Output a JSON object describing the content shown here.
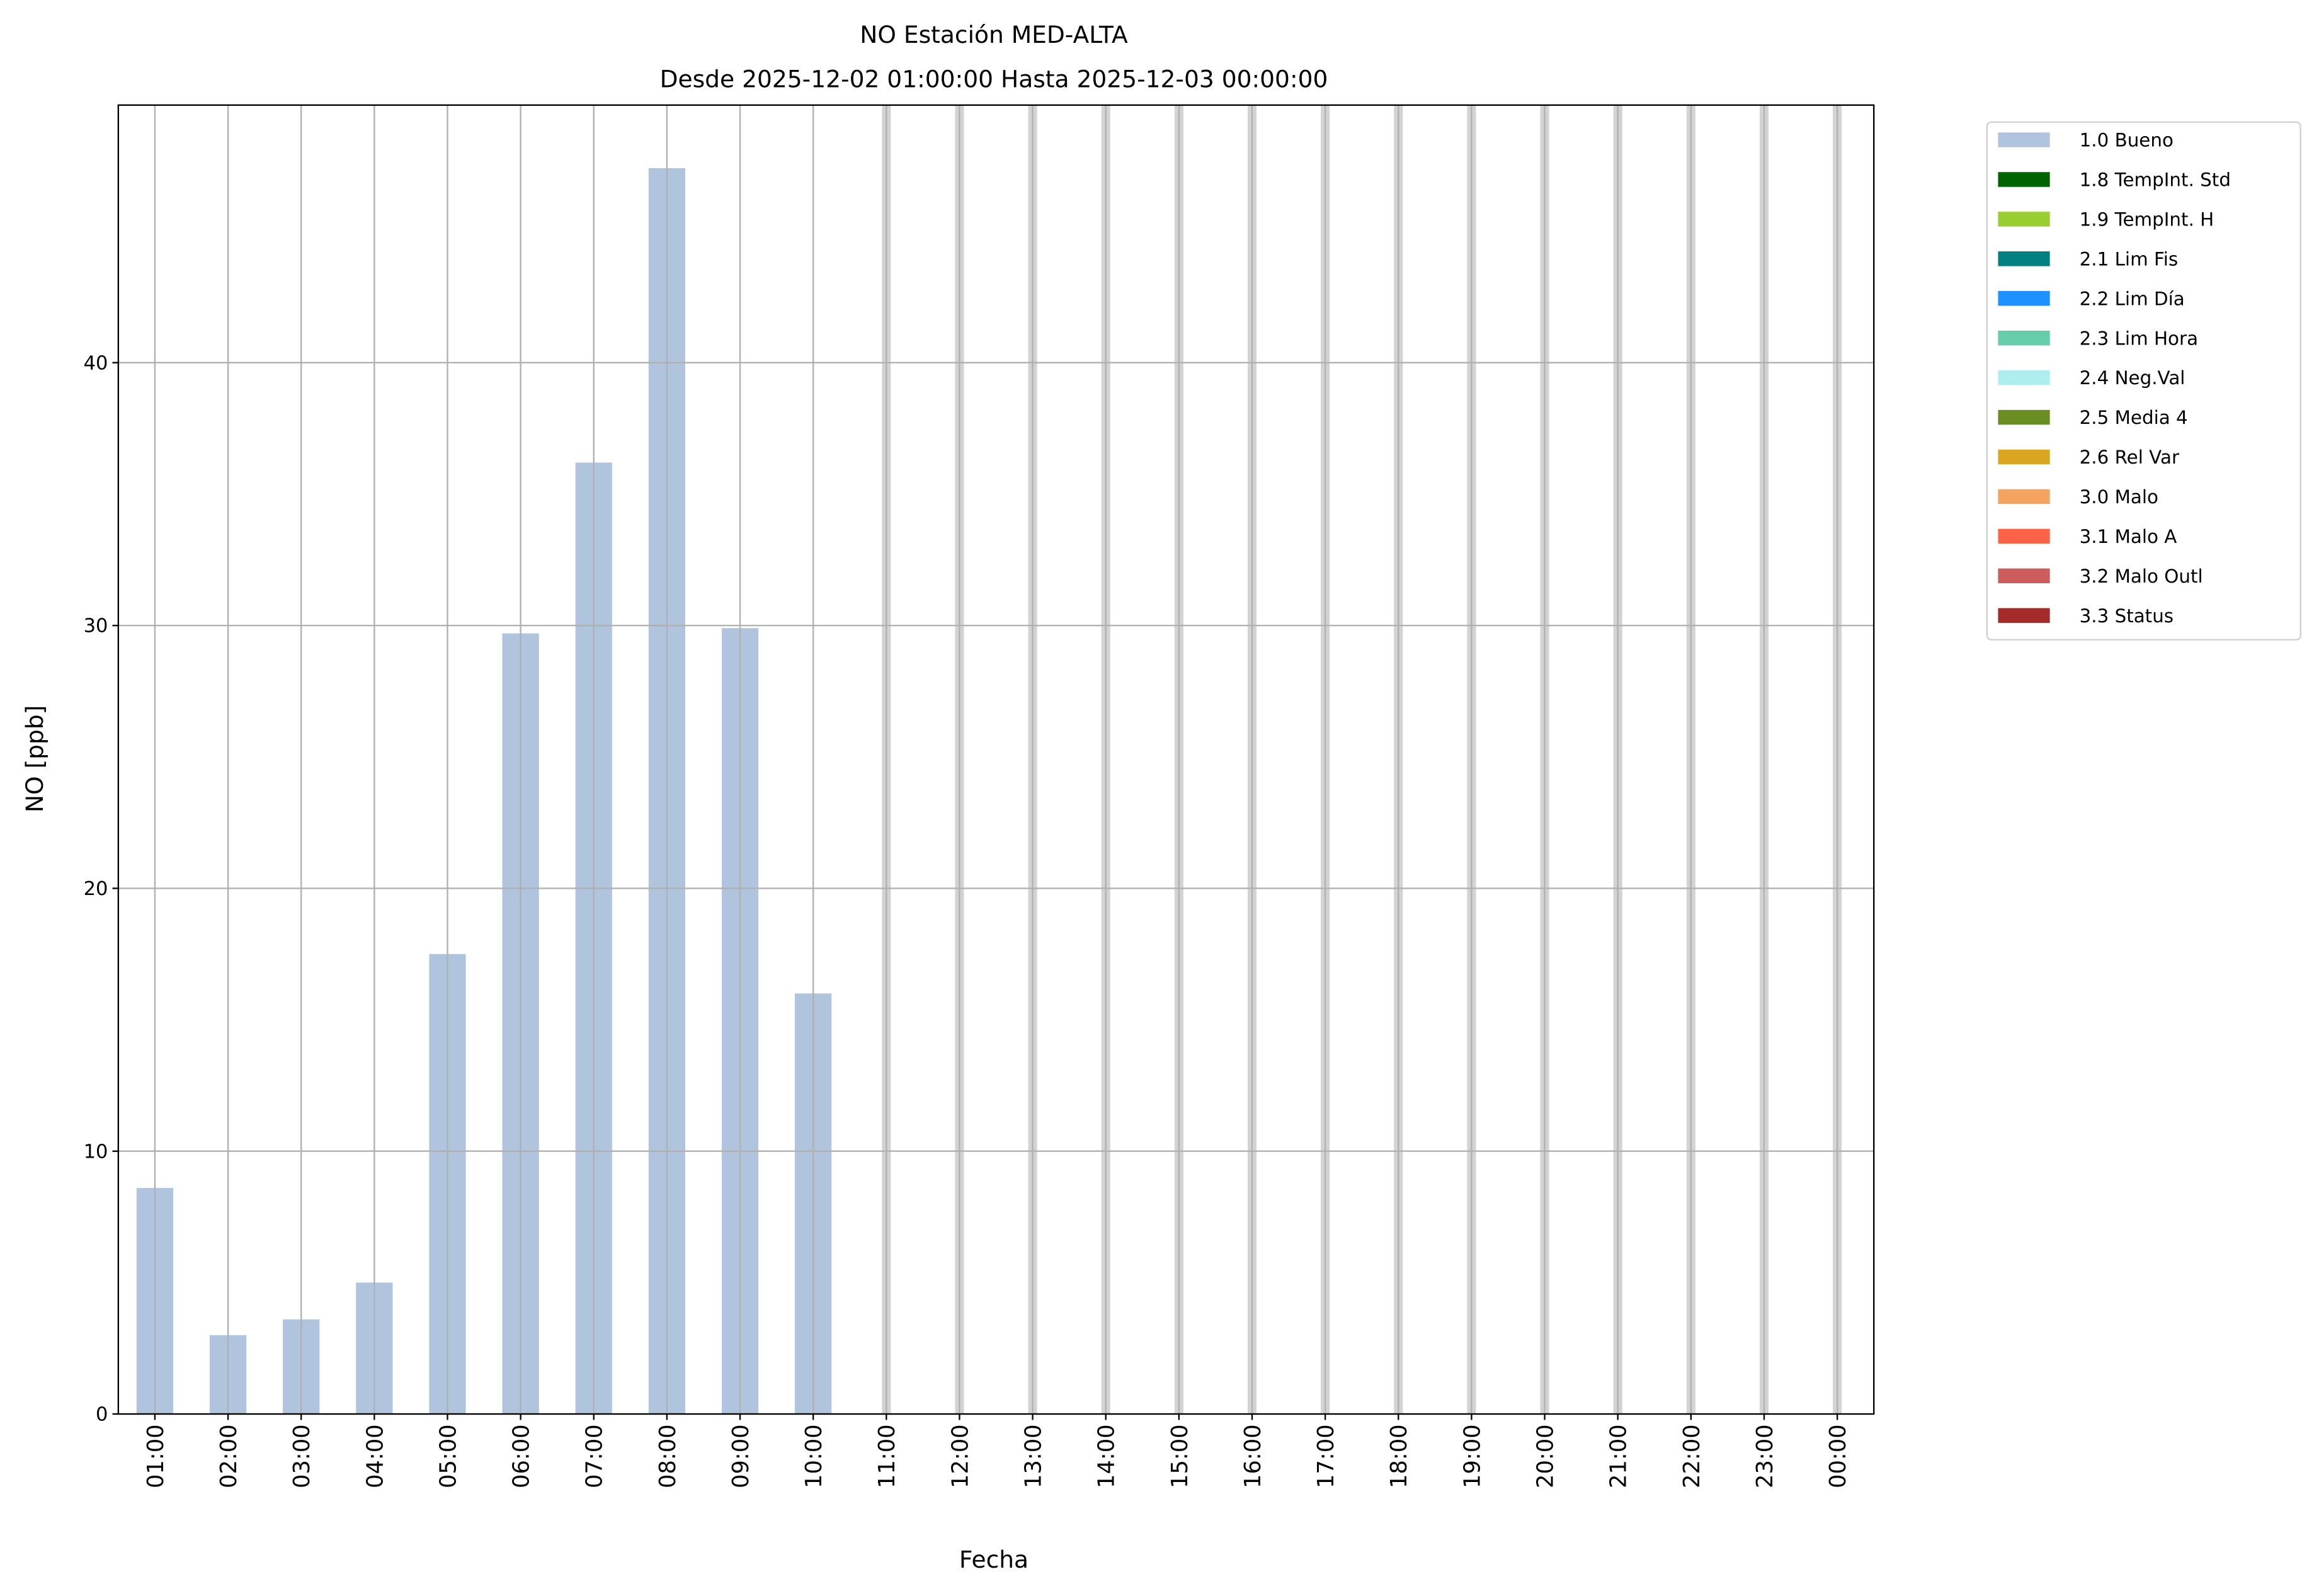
{
  "chart_data": {
    "type": "bar",
    "title": "NO Estación MED-ALTA",
    "subtitle": "Desde 2025-12-02 01:00:00 Hasta 2025-12-03 00:00:00",
    "xlabel": "Fecha",
    "ylabel": "NO [ppb]",
    "ylim": [
      0,
      49.8
    ],
    "yticks": [
      0,
      10,
      20,
      30,
      40
    ],
    "grid": true,
    "legend_placement": "outside-top-right",
    "categories": [
      "01:00",
      "02:00",
      "03:00",
      "04:00",
      "05:00",
      "06:00",
      "07:00",
      "08:00",
      "09:00",
      "10:00",
      "11:00",
      "12:00",
      "13:00",
      "14:00",
      "15:00",
      "16:00",
      "17:00",
      "18:00",
      "19:00",
      "20:00",
      "21:00",
      "22:00",
      "23:00",
      "00:00"
    ],
    "series": [
      {
        "name": "1.0 Bueno",
        "color": "#b0c4de",
        "values": [
          8.6,
          3.0,
          3.6,
          5.0,
          17.5,
          29.7,
          36.2,
          47.4,
          29.9,
          16.0,
          null,
          null,
          null,
          null,
          null,
          null,
          null,
          null,
          null,
          null,
          null,
          null,
          null,
          null
        ]
      }
    ],
    "missing_band_color": "#d3d3d3",
    "legend": [
      {
        "label": "1.0 Bueno",
        "color": "#b0c4de"
      },
      {
        "label": "1.8 TempInt. Std",
        "color": "#006400"
      },
      {
        "label": "1.9 TempInt. H",
        "color": "#9acd32"
      },
      {
        "label": "2.1 Lim Fis",
        "color": "#008080"
      },
      {
        "label": "2.2 Lim Día",
        "color": "#1e90ff"
      },
      {
        "label": "2.3 Lim Hora",
        "color": "#66cdaa"
      },
      {
        "label": "2.4 Neg.Val",
        "color": "#afeeee"
      },
      {
        "label": "2.5 Media 4",
        "color": "#6b8e23"
      },
      {
        "label": "2.6 Rel Var",
        "color": "#daa520"
      },
      {
        "label": "3.0 Malo",
        "color": "#f4a460"
      },
      {
        "label": "3.1 Malo A",
        "color": "#ff6347"
      },
      {
        "label": "3.2 Malo Outl",
        "color": "#cd5c5c"
      },
      {
        "label": "3.3 Status",
        "color": "#a52a2a"
      }
    ]
  }
}
